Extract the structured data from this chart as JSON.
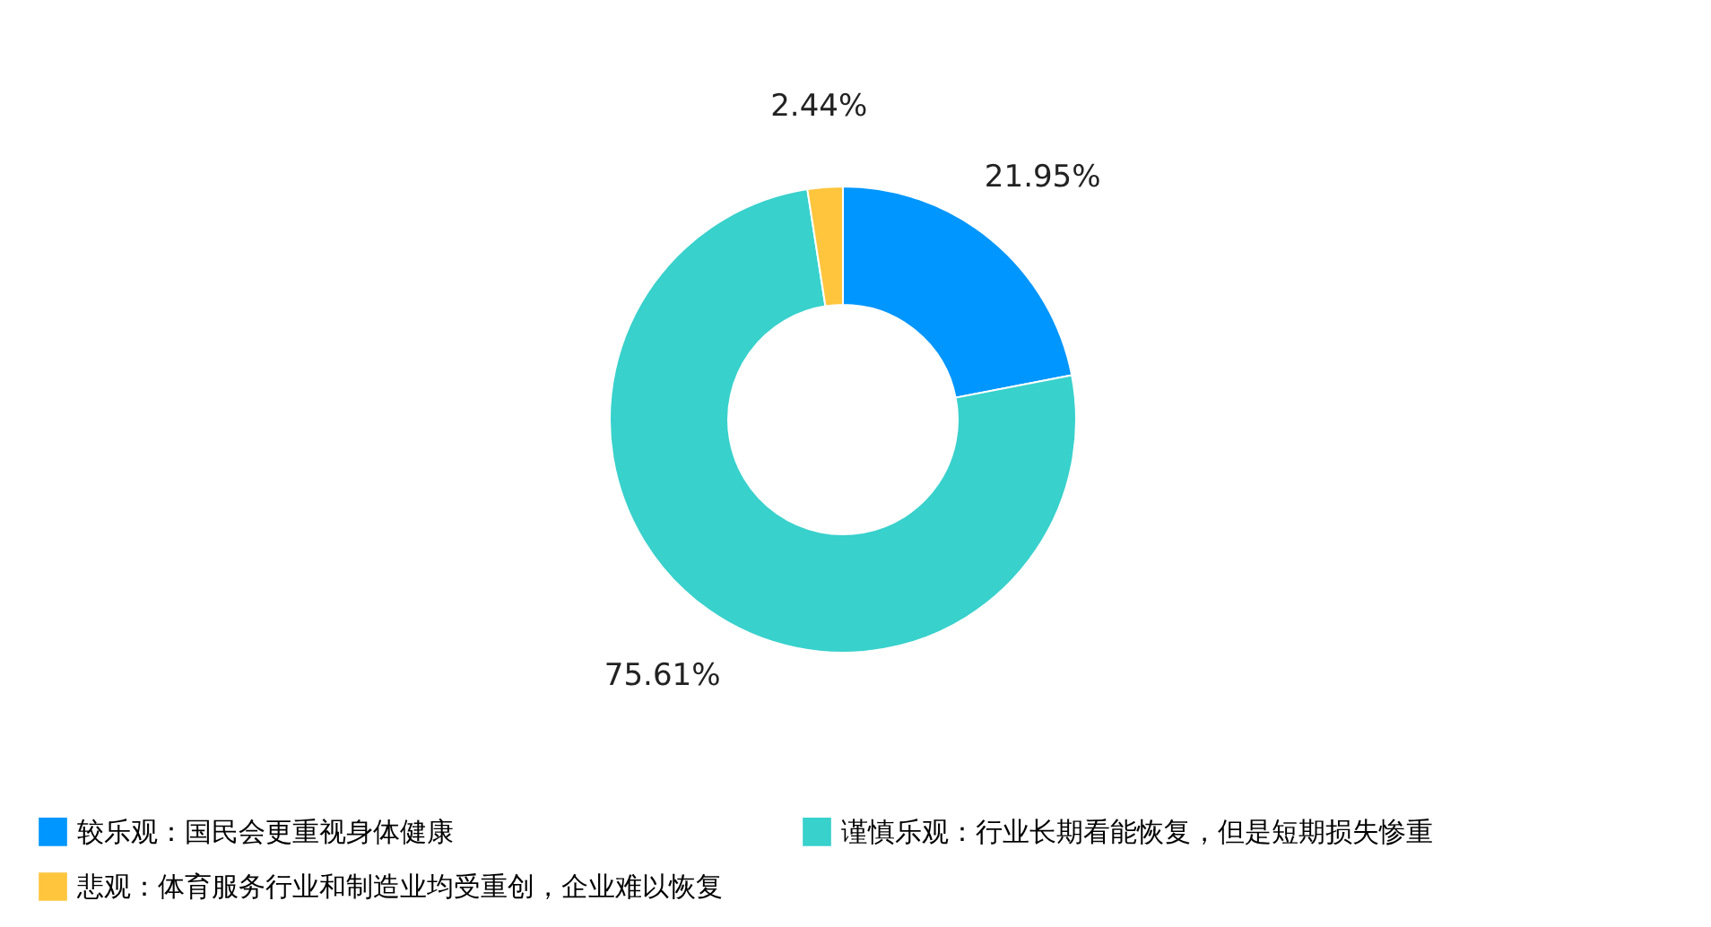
{
  "chart_data": {
    "type": "donut",
    "categories": [
      "较乐观：国民会更重视身体健康",
      "谨慎乐观：行业长期看能恢复，但是短期损失惨重",
      "悲观：体育服务行业和制造业均受重创，企业难以恢复"
    ],
    "values": [
      21.95,
      75.61,
      2.44
    ],
    "value_labels": [
      "21.95%",
      "75.61%",
      "2.44%"
    ],
    "colors": [
      "#0096ff",
      "#38d1cc",
      "#ffc53d"
    ],
    "legend": "bottom"
  }
}
